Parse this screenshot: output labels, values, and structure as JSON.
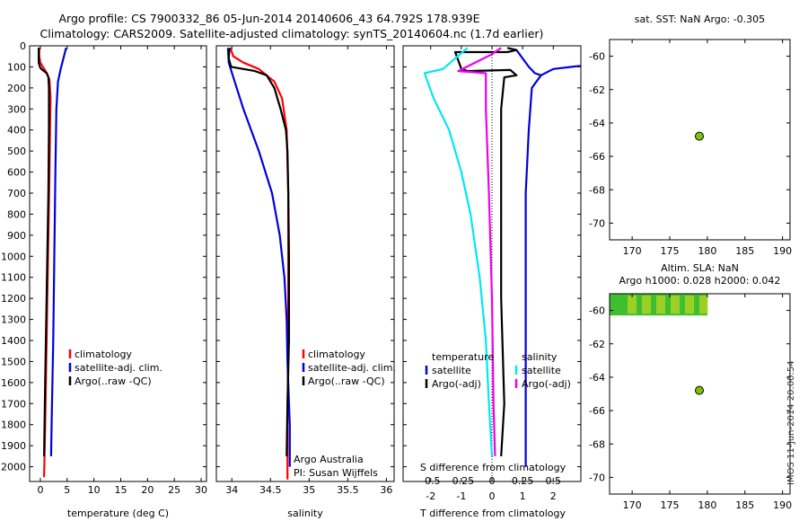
{
  "title": {
    "line1": "Argo profile: CS 7900332_86 05-Jun-2014 20140606_43 64.792S 178.939E",
    "line2": "Climatology: CARS2009. Satellite-adjusted climatology: synTS_20140604.nc (1.7d earlier)"
  },
  "colors": {
    "clim": "#ff0000",
    "sat": "#0000dd",
    "argo": "#000000",
    "sat_sal": "#00e8f0",
    "argo_sal": "#ee00ee",
    "marker": "#7ac700",
    "sla_patch_base": "#3fbf2f",
    "sla_patch_hot": "#e8e020"
  },
  "chart_data": [
    {
      "type": "line",
      "id": "temperature",
      "xlabel": "temperature (deg C)",
      "xlim": [
        -2,
        31
      ],
      "ylim": [
        2070,
        0
      ],
      "xticks": [
        0,
        5,
        10,
        15,
        20,
        25,
        30
      ],
      "yticks": [
        0,
        100,
        200,
        300,
        400,
        500,
        600,
        700,
        800,
        900,
        1000,
        1100,
        1200,
        1300,
        1400,
        1500,
        1600,
        1700,
        1800,
        1900,
        2000
      ],
      "legend": [
        "climatology",
        "satellite-adj. clim.",
        "Argo(..raw -QC)"
      ],
      "series": [
        {
          "name": "climatology",
          "color": "clim",
          "points": [
            [
              -0.2,
              10
            ],
            [
              -0.2,
              50
            ],
            [
              0.0,
              80
            ],
            [
              0.6,
              105
            ],
            [
              1.2,
              130
            ],
            [
              1.7,
              160
            ],
            [
              1.9,
              250
            ],
            [
              1.8,
              400
            ],
            [
              1.7,
              600
            ],
            [
              1.5,
              900
            ],
            [
              1.3,
              1200
            ],
            [
              1.1,
              1500
            ],
            [
              0.9,
              1800
            ],
            [
              0.7,
              2050
            ]
          ]
        },
        {
          "name": "satellite-adj. clim.",
          "color": "sat",
          "points": [
            [
              4.8,
              10
            ],
            [
              4.3,
              60
            ],
            [
              3.8,
              110
            ],
            [
              3.3,
              170
            ],
            [
              3.0,
              300
            ],
            [
              2.8,
              600
            ],
            [
              2.6,
              1000
            ],
            [
              2.4,
              1400
            ],
            [
              2.1,
              1800
            ],
            [
              2.0,
              1950
            ]
          ]
        },
        {
          "name": "Argo(..raw -QC)",
          "color": "argo",
          "points": [
            [
              -0.3,
              10
            ],
            [
              -0.3,
              80
            ],
            [
              0.0,
              105
            ],
            [
              0.4,
              115
            ],
            [
              1.2,
              130
            ],
            [
              1.5,
              150
            ],
            [
              1.6,
              200
            ],
            [
              1.6,
              400
            ],
            [
              1.5,
              700
            ],
            [
              1.3,
              1000
            ],
            [
              1.1,
              1300
            ],
            [
              0.9,
              1600
            ],
            [
              0.7,
              1950
            ]
          ]
        }
      ]
    },
    {
      "type": "line",
      "id": "salinity",
      "xlabel": "salinity",
      "xlim": [
        33.8,
        36.1
      ],
      "ylim": [
        2070,
        0
      ],
      "xticks": [
        34,
        34.5,
        35,
        35.5,
        36
      ],
      "legend": [
        "climatology",
        "satellite-adj. clim.",
        "Argo(..raw -QC)"
      ],
      "annotation": [
        "Argo Australia",
        "PI: Susan Wijffels"
      ],
      "series": [
        {
          "name": "climatology",
          "color": "clim",
          "points": [
            [
              33.98,
              10
            ],
            [
              34.02,
              50
            ],
            [
              34.15,
              80
            ],
            [
              34.35,
              110
            ],
            [
              34.55,
              170
            ],
            [
              34.65,
              250
            ],
            [
              34.71,
              400
            ],
            [
              34.73,
              700
            ],
            [
              34.73,
              1000
            ],
            [
              34.73,
              1400
            ],
            [
              34.72,
              1800
            ],
            [
              34.72,
              2060
            ]
          ]
        },
        {
          "name": "satellite-adj. clim.",
          "color": "sat",
          "points": [
            [
              33.95,
              10
            ],
            [
              33.96,
              80
            ],
            [
              34.02,
              150
            ],
            [
              34.15,
              300
            ],
            [
              34.35,
              500
            ],
            [
              34.52,
              700
            ],
            [
              34.62,
              900
            ],
            [
              34.68,
              1100
            ],
            [
              34.71,
              1300
            ],
            [
              34.72,
              1500
            ],
            [
              34.74,
              1700
            ],
            [
              34.75,
              1800
            ],
            [
              34.75,
              2000
            ]
          ]
        },
        {
          "name": "Argo(..raw -QC)",
          "color": "argo",
          "points": [
            [
              33.97,
              10
            ],
            [
              33.96,
              60
            ],
            [
              33.99,
              100
            ],
            [
              34.3,
              120
            ],
            [
              34.45,
              140
            ],
            [
              34.55,
              200
            ],
            [
              34.63,
              300
            ],
            [
              34.7,
              400
            ],
            [
              34.72,
              500
            ],
            [
              34.73,
              700
            ],
            [
              34.74,
              1000
            ],
            [
              34.74,
              1400
            ],
            [
              34.72,
              1700
            ],
            [
              34.71,
              1950
            ]
          ]
        }
      ]
    },
    {
      "type": "line",
      "id": "difference",
      "xlabel": "T difference from climatology",
      "xlabel_top": "S difference from climatology",
      "xlim": [
        -2.9,
        2.9
      ],
      "ylim": [
        2070,
        0
      ],
      "xticks": [
        -2,
        -1,
        0,
        1,
        2
      ],
      "xticks_s": [
        -0.5,
        -0.25,
        0,
        0.25,
        0.5
      ],
      "legend_headers": [
        "temperature",
        "salinity"
      ],
      "legend": [
        "satellite",
        "Argo(-adj)",
        "satellite",
        "Argo(-adj)"
      ],
      "series": [
        {
          "name": "temperature satellite",
          "color": "sat",
          "points": [
            [
              0.8,
              20
            ],
            [
              1.2,
              100
            ],
            [
              1.4,
              130
            ],
            [
              1.6,
              140
            ],
            [
              2.0,
              110
            ],
            [
              2.6,
              100
            ],
            [
              2.9,
              95
            ]
          ]
        },
        {
          "name": "temperature satellite deep",
          "color": "sat",
          "points": [
            [
              1.6,
              140
            ],
            [
              1.3,
              200
            ],
            [
              1.2,
              400
            ],
            [
              1.1,
              700
            ],
            [
              1.1,
              1100
            ],
            [
              1.1,
              1500
            ],
            [
              1.1,
              1900
            ],
            [
              1.1,
              2000
            ]
          ]
        },
        {
          "name": "temperature Argo(-adj)",
          "color": "argo",
          "points": [
            [
              0.5,
              10
            ],
            [
              0.8,
              20
            ],
            [
              0.5,
              30
            ],
            [
              -1.2,
              30
            ],
            [
              -1.0,
              110
            ],
            [
              -0.8,
              120
            ],
            [
              0.6,
              115
            ],
            [
              0.8,
              140
            ],
            [
              0.4,
              150
            ],
            [
              0.3,
              300
            ],
            [
              0.3,
              700
            ],
            [
              0.3,
              1200
            ],
            [
              0.4,
              1700
            ],
            [
              0.3,
              1950
            ]
          ]
        },
        {
          "name": "salinity satellite",
          "color": "sat_sal",
          "points": [
            [
              -0.8,
              10
            ],
            [
              -1.2,
              60
            ],
            [
              -1.6,
              110
            ],
            [
              -2.2,
              130
            ],
            [
              -1.9,
              250
            ],
            [
              -1.4,
              400
            ],
            [
              -1.0,
              600
            ],
            [
              -0.7,
              800
            ],
            [
              -0.4,
              1100
            ],
            [
              -0.2,
              1400
            ],
            [
              -0.1,
              1700
            ],
            [
              0.0,
              1950
            ]
          ]
        },
        {
          "name": "salinity Argo(-adj)",
          "color": "argo_sal",
          "points": [
            [
              0.3,
              10
            ],
            [
              0.0,
              40
            ],
            [
              -1.1,
              120
            ],
            [
              -0.2,
              130
            ],
            [
              -0.2,
              300
            ],
            [
              -0.1,
              700
            ],
            [
              0.0,
              1200
            ],
            [
              0.05,
              1700
            ],
            [
              0.1,
              1950
            ]
          ]
        }
      ]
    },
    {
      "type": "scatter",
      "id": "sst_map",
      "title": "sat. SST: NaN Argo: -0.305",
      "xlim": [
        167,
        191
      ],
      "ylim": [
        -71,
        -59
      ],
      "xticks": [
        170,
        175,
        180,
        185,
        190
      ],
      "yticks": [
        -60,
        -62,
        -64,
        -66,
        -68,
        -70
      ],
      "points": [
        {
          "x": 178.939,
          "y": -64.792
        }
      ]
    },
    {
      "type": "scatter",
      "id": "sla_map",
      "title": "Altim. SLA: NaN",
      "subtitle": "Argo h1000: 0.028 h2000: 0.042",
      "xlim": [
        167,
        191
      ],
      "ylim": [
        -71,
        -59
      ],
      "xticks": [
        170,
        175,
        180,
        185,
        190
      ],
      "yticks": [
        -60,
        -62,
        -64,
        -66,
        -68,
        -70
      ],
      "points": [
        {
          "x": 178.939,
          "y": -64.792
        }
      ]
    }
  ],
  "footer": {
    "stamp": "IMOS 11-Jun-2014 20:00:54"
  }
}
